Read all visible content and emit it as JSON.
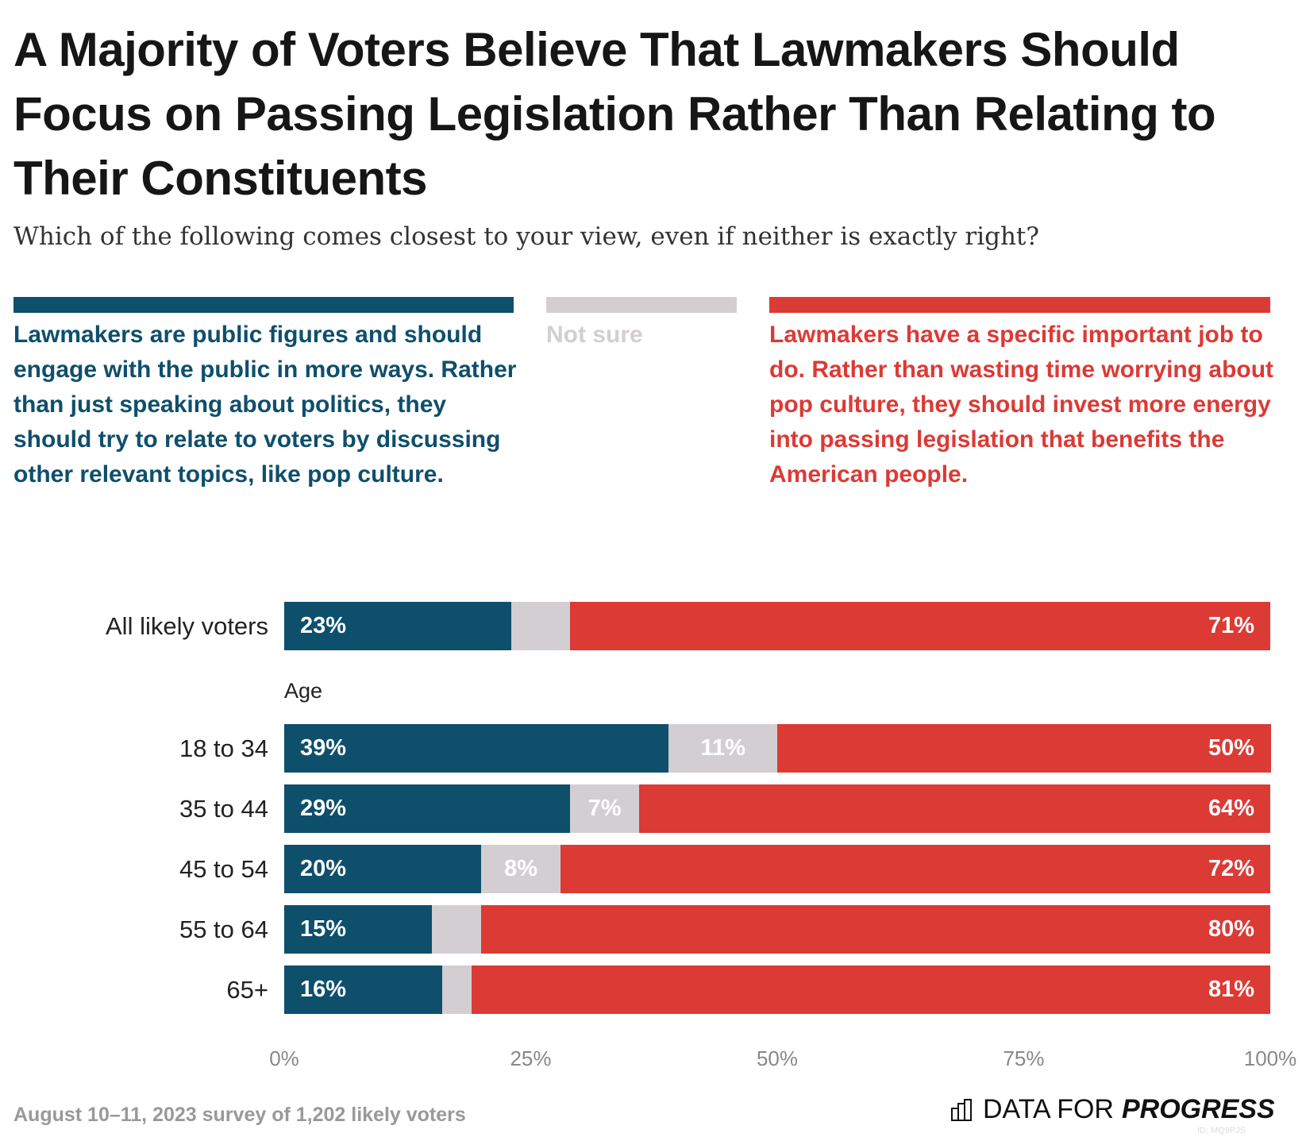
{
  "title": "A Majority of Voters Believe That Lawmakers Should Focus on Passing Legislation Rather Than Relating to Their Constituents",
  "subtitle": "Which of the following comes closest to your view, even if neither is exactly right?",
  "colors": {
    "engage": "#0e4f6c",
    "not_sure": "#d3ced2",
    "legislate": "#dc3a35",
    "not_sure_text": "#d3ced2"
  },
  "chart_data": {
    "type": "bar",
    "orientation": "horizontal",
    "stacked": true,
    "series": [
      {
        "name": "Lawmakers are public figures and should engage with the public in more ways. Rather than just speaking about politics, they should try to relate to voters by discussing other relevant topics, like pop culture.",
        "values": [
          23,
          39,
          29,
          20,
          15,
          16
        ]
      },
      {
        "name": "Not sure",
        "values": [
          6,
          11,
          7,
          8,
          5,
          3
        ]
      },
      {
        "name": "Lawmakers have a specific important job to do. Rather than wasting time worrying about pop culture, they should invest more energy into passing legislation that benefits the American people.",
        "values": [
          71,
          50,
          64,
          72,
          80,
          81
        ]
      }
    ],
    "categories": [
      "All likely voters",
      "18 to 34",
      "35 to 44",
      "45 to 54",
      "55 to 64",
      "65+"
    ],
    "group_label": "Age",
    "xlim": [
      0,
      100
    ],
    "x_ticks": [
      "0%",
      "25%",
      "50%",
      "75%",
      "100%"
    ],
    "legend_position": "top",
    "grid": false
  },
  "footer": "August 10–11, 2023 survey of 1,202 likely voters",
  "logo": {
    "light": "DATA FOR",
    "bold": "PROGRESS",
    "icon": "bar-chart-icon"
  },
  "chart_id": "ID: MQ9PJS"
}
